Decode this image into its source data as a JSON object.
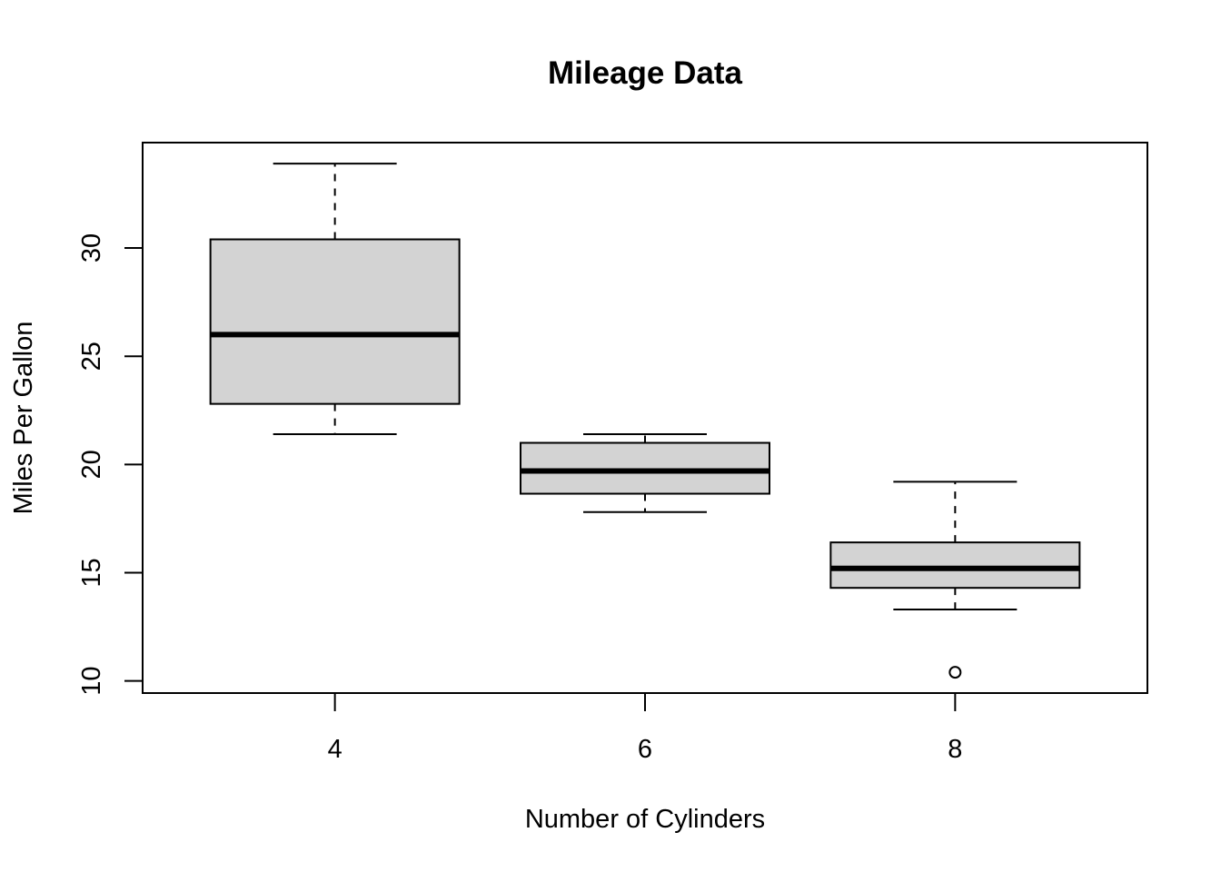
{
  "chart_data": {
    "type": "boxplot",
    "title": "Mileage Data",
    "xlabel": "Number of Cylinders",
    "ylabel": "Miles Per Gallon",
    "ylim": [
      9.44,
      34.87
    ],
    "yticks": [
      10,
      15,
      20,
      25,
      30
    ],
    "grid": false,
    "box_fill": "#d3d3d3",
    "line_color": "#000000",
    "categories": [
      "4",
      "6",
      "8"
    ],
    "boxes": [
      {
        "category": "4",
        "whisker_low": 21.4,
        "q1": 22.8,
        "median": 26.0,
        "q3": 30.4,
        "whisker_high": 33.9,
        "outliers": []
      },
      {
        "category": "6",
        "whisker_low": 17.8,
        "q1": 18.65,
        "median": 19.7,
        "q3": 21.0,
        "whisker_high": 21.4,
        "outliers": []
      },
      {
        "category": "8",
        "whisker_low": 13.3,
        "q1": 14.3,
        "median": 15.2,
        "q3": 16.4,
        "whisker_high": 19.2,
        "outliers": [
          10.4
        ]
      }
    ]
  }
}
